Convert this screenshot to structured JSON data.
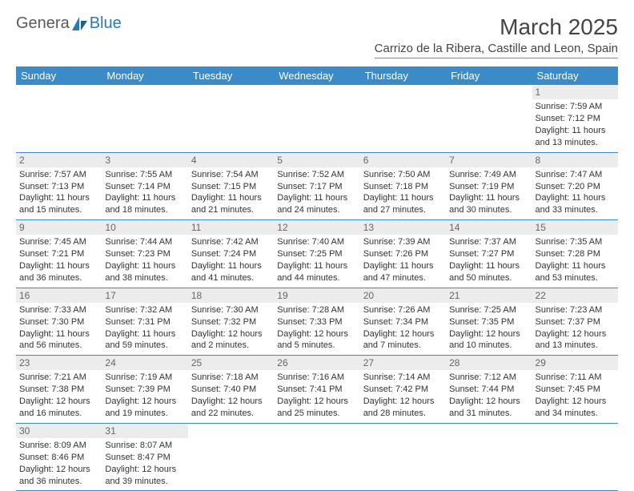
{
  "logo": {
    "text1": "Genera",
    "text2": "Blue"
  },
  "title": "March 2025",
  "location": "Carrizo de la Ribera, Castille and Leon, Spain",
  "colors": {
    "header_bg": "#3b8bc9",
    "header_text": "#ffffff",
    "row_border": "#3b8bc9",
    "daynum_bg": "#ececec",
    "text": "#333333"
  },
  "columns": [
    "Sunday",
    "Monday",
    "Tuesday",
    "Wednesday",
    "Thursday",
    "Friday",
    "Saturday"
  ],
  "weeks": [
    [
      null,
      null,
      null,
      null,
      null,
      null,
      {
        "n": 1,
        "sr": "7:59 AM",
        "ss": "7:12 PM",
        "dl": "11 hours and 13 minutes."
      }
    ],
    [
      {
        "n": 2,
        "sr": "7:57 AM",
        "ss": "7:13 PM",
        "dl": "11 hours and 15 minutes."
      },
      {
        "n": 3,
        "sr": "7:55 AM",
        "ss": "7:14 PM",
        "dl": "11 hours and 18 minutes."
      },
      {
        "n": 4,
        "sr": "7:54 AM",
        "ss": "7:15 PM",
        "dl": "11 hours and 21 minutes."
      },
      {
        "n": 5,
        "sr": "7:52 AM",
        "ss": "7:17 PM",
        "dl": "11 hours and 24 minutes."
      },
      {
        "n": 6,
        "sr": "7:50 AM",
        "ss": "7:18 PM",
        "dl": "11 hours and 27 minutes."
      },
      {
        "n": 7,
        "sr": "7:49 AM",
        "ss": "7:19 PM",
        "dl": "11 hours and 30 minutes."
      },
      {
        "n": 8,
        "sr": "7:47 AM",
        "ss": "7:20 PM",
        "dl": "11 hours and 33 minutes."
      }
    ],
    [
      {
        "n": 9,
        "sr": "7:45 AM",
        "ss": "7:21 PM",
        "dl": "11 hours and 36 minutes."
      },
      {
        "n": 10,
        "sr": "7:44 AM",
        "ss": "7:23 PM",
        "dl": "11 hours and 38 minutes."
      },
      {
        "n": 11,
        "sr": "7:42 AM",
        "ss": "7:24 PM",
        "dl": "11 hours and 41 minutes."
      },
      {
        "n": 12,
        "sr": "7:40 AM",
        "ss": "7:25 PM",
        "dl": "11 hours and 44 minutes."
      },
      {
        "n": 13,
        "sr": "7:39 AM",
        "ss": "7:26 PM",
        "dl": "11 hours and 47 minutes."
      },
      {
        "n": 14,
        "sr": "7:37 AM",
        "ss": "7:27 PM",
        "dl": "11 hours and 50 minutes."
      },
      {
        "n": 15,
        "sr": "7:35 AM",
        "ss": "7:28 PM",
        "dl": "11 hours and 53 minutes."
      }
    ],
    [
      {
        "n": 16,
        "sr": "7:33 AM",
        "ss": "7:30 PM",
        "dl": "11 hours and 56 minutes."
      },
      {
        "n": 17,
        "sr": "7:32 AM",
        "ss": "7:31 PM",
        "dl": "11 hours and 59 minutes."
      },
      {
        "n": 18,
        "sr": "7:30 AM",
        "ss": "7:32 PM",
        "dl": "12 hours and 2 minutes."
      },
      {
        "n": 19,
        "sr": "7:28 AM",
        "ss": "7:33 PM",
        "dl": "12 hours and 5 minutes."
      },
      {
        "n": 20,
        "sr": "7:26 AM",
        "ss": "7:34 PM",
        "dl": "12 hours and 7 minutes."
      },
      {
        "n": 21,
        "sr": "7:25 AM",
        "ss": "7:35 PM",
        "dl": "12 hours and 10 minutes."
      },
      {
        "n": 22,
        "sr": "7:23 AM",
        "ss": "7:37 PM",
        "dl": "12 hours and 13 minutes."
      }
    ],
    [
      {
        "n": 23,
        "sr": "7:21 AM",
        "ss": "7:38 PM",
        "dl": "12 hours and 16 minutes."
      },
      {
        "n": 24,
        "sr": "7:19 AM",
        "ss": "7:39 PM",
        "dl": "12 hours and 19 minutes."
      },
      {
        "n": 25,
        "sr": "7:18 AM",
        "ss": "7:40 PM",
        "dl": "12 hours and 22 minutes."
      },
      {
        "n": 26,
        "sr": "7:16 AM",
        "ss": "7:41 PM",
        "dl": "12 hours and 25 minutes."
      },
      {
        "n": 27,
        "sr": "7:14 AM",
        "ss": "7:42 PM",
        "dl": "12 hours and 28 minutes."
      },
      {
        "n": 28,
        "sr": "7:12 AM",
        "ss": "7:44 PM",
        "dl": "12 hours and 31 minutes."
      },
      {
        "n": 29,
        "sr": "7:11 AM",
        "ss": "7:45 PM",
        "dl": "12 hours and 34 minutes."
      }
    ],
    [
      {
        "n": 30,
        "sr": "8:09 AM",
        "ss": "8:46 PM",
        "dl": "12 hours and 36 minutes."
      },
      {
        "n": 31,
        "sr": "8:07 AM",
        "ss": "8:47 PM",
        "dl": "12 hours and 39 minutes."
      },
      null,
      null,
      null,
      null,
      null
    ]
  ],
  "labels": {
    "sunrise": "Sunrise:",
    "sunset": "Sunset:",
    "daylight": "Daylight:"
  }
}
